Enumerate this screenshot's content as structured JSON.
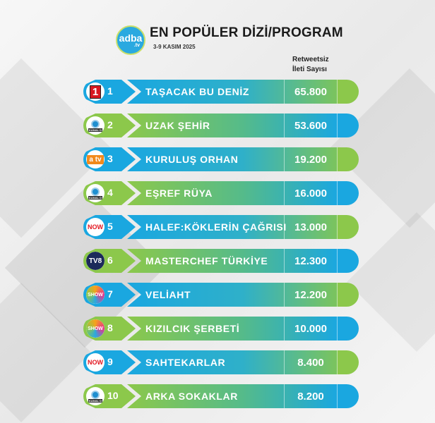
{
  "header": {
    "logo_text": "adba",
    "logo_sub": ".tv",
    "title": "EN POPÜLER DİZİ/PROGRAM",
    "date": "3-9 KASIM 2025",
    "column_header_line1": "Retweetsiz",
    "column_header_line2": "İleti Sayısı"
  },
  "colors": {
    "blue": "#1aa7e0",
    "green": "#8cc84b"
  },
  "rows": [
    {
      "rank": "1",
      "channel": "1",
      "channel_icon": "kanal-1-logo",
      "name": "TAŞACAK BU DENİZ",
      "value": "65.800"
    },
    {
      "rank": "2",
      "channel": "KANAL D",
      "channel_icon": "kanal-d-logo",
      "name": "UZAK ŞEHİR",
      "value": "53.600"
    },
    {
      "rank": "3",
      "channel": "atv",
      "channel_icon": "atv-logo",
      "name": "KURULUŞ ORHAN",
      "value": "19.200"
    },
    {
      "rank": "4",
      "channel": "KANAL D",
      "channel_icon": "kanal-d-logo",
      "name": "EŞREF RÜYA",
      "value": "16.000"
    },
    {
      "rank": "5",
      "channel": "NOW",
      "channel_icon": "now-logo",
      "name": "HALEF:KÖKLERİN ÇAĞRISI",
      "value": "13.000"
    },
    {
      "rank": "6",
      "channel": "TV8",
      "channel_icon": "tv8-logo",
      "name": "MASTERCHEF TÜRKİYE",
      "value": "12.300"
    },
    {
      "rank": "7",
      "channel": "SHOW",
      "channel_icon": "show-logo",
      "name": "VELİAHT",
      "value": "12.200"
    },
    {
      "rank": "8",
      "channel": "SHOW",
      "channel_icon": "show-logo",
      "name": "KIZILCIK ŞERBETİ",
      "value": "10.000"
    },
    {
      "rank": "9",
      "channel": "NOW",
      "channel_icon": "now-logo",
      "name": "SAHTEKARLAR",
      "value": "8.400"
    },
    {
      "rank": "10",
      "channel": "KANAL D",
      "channel_icon": "kanal-d-logo",
      "name": "ARKA SOKAKLAR",
      "value": "8.200"
    }
  ]
}
